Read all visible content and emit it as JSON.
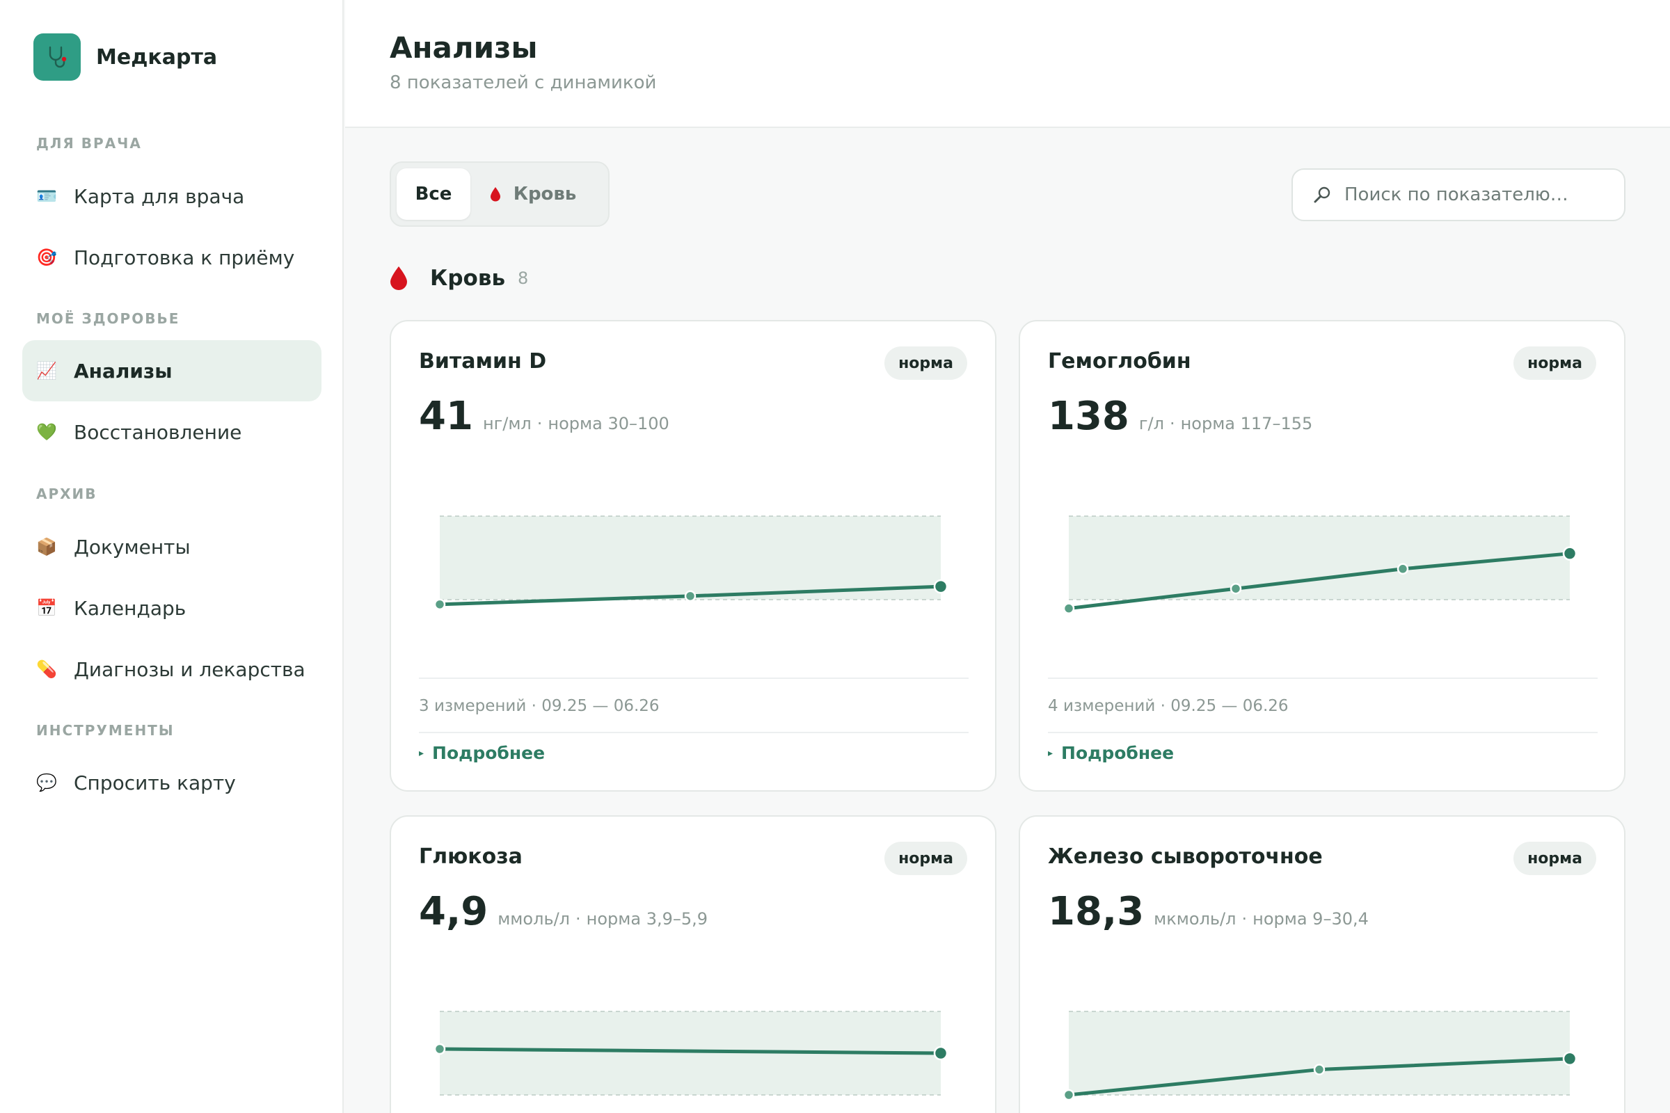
{
  "app": {
    "name": "Медкарта"
  },
  "sidebar": {
    "sections": [
      {
        "label": "ДЛЯ ВРАЧА"
      },
      {
        "label": "МОЁ ЗДОРОВЬЕ"
      },
      {
        "label": "АРХИВ"
      },
      {
        "label": "ИНСТРУМЕНТЫ"
      }
    ],
    "items": [
      {
        "label": "Карта для врача",
        "icon": "id-card-icon",
        "glyph": "🪪",
        "active": false
      },
      {
        "label": "Подготовка к приёму",
        "icon": "target-icon",
        "glyph": "🎯",
        "active": false
      },
      {
        "label": "Анализы",
        "icon": "chart-increasing-icon",
        "glyph": "📈",
        "active": true
      },
      {
        "label": "Восстановление",
        "icon": "green-heart-icon",
        "glyph": "💚",
        "active": false
      },
      {
        "label": "Документы",
        "icon": "box-icon",
        "glyph": "📦",
        "active": false
      },
      {
        "label": "Календарь",
        "icon": "calendar-icon",
        "glyph": "📅",
        "active": false
      },
      {
        "label": "Диагнозы и лекарства",
        "icon": "pill-icon",
        "glyph": "💊",
        "active": false
      },
      {
        "label": "Спросить карту",
        "icon": "speech-bubble-icon",
        "glyph": "💬",
        "active": false
      }
    ]
  },
  "header": {
    "title": "Анализы",
    "subtitle": "8 показателей с динамикой"
  },
  "filters": {
    "all_label": "Все",
    "blood_label": "Кровь"
  },
  "search": {
    "placeholder": "Поиск по показателю…",
    "value": ""
  },
  "group": {
    "title": "Кровь",
    "count": "8"
  },
  "colors": {
    "accent": "#2d7c63",
    "brand": "#2f9d85",
    "norm_band": "#e8f1ec",
    "blood": "#d7141e"
  },
  "cards": [
    {
      "name": "Витамин D",
      "badge": "норма",
      "value": "41",
      "unit": "нг/мл",
      "norm": "норма 30–100",
      "meta": "3 измерений · 09.25 — 06.26",
      "more": "Подробнее"
    },
    {
      "name": "Гемоглобин",
      "badge": "норма",
      "value": "138",
      "unit": "г/л",
      "norm": "норма 117–155",
      "meta": "4 измерений · 09.25 — 06.26",
      "more": "Подробнее"
    },
    {
      "name": "Глюкоза",
      "badge": "норма",
      "value": "4,9",
      "unit": "ммоль/л",
      "norm": "норма 3,9–5,9",
      "meta": "",
      "more": ""
    },
    {
      "name": "Железо сывороточное",
      "badge": "норма",
      "value": "18,3",
      "unit": "мкмоль/л",
      "norm": "норма 9–30,4",
      "meta": "",
      "more": ""
    }
  ],
  "chart_data": [
    {
      "type": "line",
      "title": "Витамин D",
      "ylabel": "нг/мл",
      "norm_range": [
        30,
        100
      ],
      "series": [
        {
          "values": [
            26,
            33,
            41
          ]
        }
      ]
    },
    {
      "type": "line",
      "title": "Гемоглобин",
      "ylabel": "г/л",
      "norm_range": [
        117,
        155
      ],
      "series": [
        {
          "values": [
            113,
            122,
            131,
            138
          ]
        }
      ]
    },
    {
      "type": "line",
      "title": "Глюкоза",
      "ylabel": "ммоль/л",
      "norm_range": [
        3.9,
        5.9
      ],
      "series": [
        {
          "values": [
            5.0,
            4.9
          ]
        }
      ]
    },
    {
      "type": "line",
      "title": "Железо сывороточное",
      "ylabel": "мкмоль/л",
      "norm_range": [
        9,
        30.4
      ],
      "series": [
        {
          "values": [
            9,
            15.5,
            18.3
          ]
        }
      ]
    }
  ]
}
